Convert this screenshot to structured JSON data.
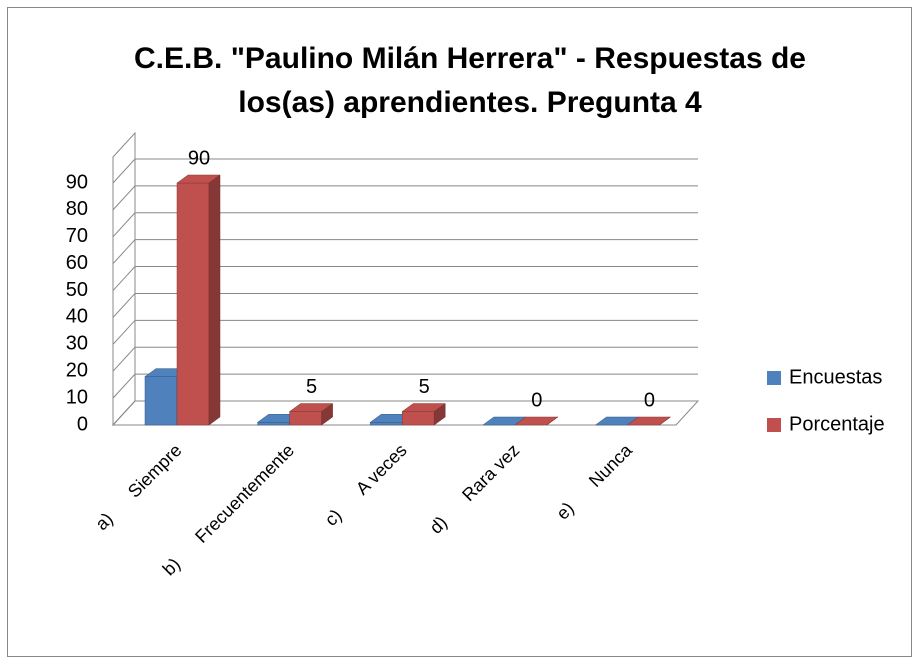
{
  "chart_data": {
    "type": "bar3d",
    "title": "C.E.B. \"Paulino Milán Herrera\" - Respuestas de los(as) aprendientes. Pregunta 4",
    "categories": [
      "a)      Siempre",
      "b)      Frecuentemente",
      "c)      A veces",
      "d)      Rara vez",
      "e)      Nunca"
    ],
    "series": [
      {
        "name": "Encuestas",
        "color": "#4f81bd",
        "values": [
          18,
          1,
          1,
          0,
          0
        ]
      },
      {
        "name": "Porcentaje",
        "color": "#c0504d",
        "values": [
          90,
          5,
          5,
          0,
          0
        ]
      }
    ],
    "ylim": [
      0,
      90
    ],
    "yticks": [
      0,
      10,
      20,
      30,
      40,
      50,
      60,
      70,
      80,
      90
    ],
    "grid": true,
    "legend": "right"
  }
}
